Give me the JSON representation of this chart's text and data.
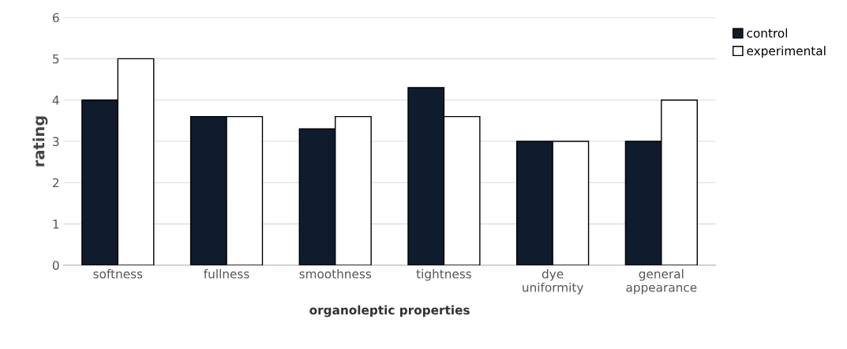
{
  "chart_data": {
    "type": "bar",
    "xlabel": "organoleptic properties",
    "ylabel": "rating",
    "categories": [
      "softness",
      "fullness",
      "smoothness",
      "tightness",
      "dye\nuniformity",
      "general\nappearance"
    ],
    "series": [
      {
        "name": "control",
        "color": "#0f1c2e",
        "values": [
          4.0,
          3.6,
          3.3,
          4.3,
          3.0,
          3.0
        ]
      },
      {
        "name": "experimental",
        "color": "#ffffff",
        "values": [
          5.0,
          3.6,
          3.6,
          3.6,
          3.0,
          4.0
        ]
      }
    ],
    "ylim": [
      0,
      6
    ],
    "yticks": [
      0,
      1,
      2,
      3,
      4,
      5,
      6
    ],
    "grid": "y",
    "legend": "top right"
  }
}
